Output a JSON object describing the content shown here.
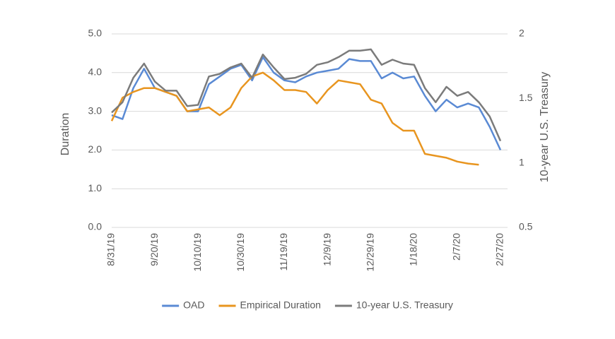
{
  "chart_data": {
    "type": "line",
    "ylabel": "Duration",
    "y2label": "10-year U.S. Treasury",
    "x": [
      "8/31/19",
      "9/5/19",
      "9/10/19",
      "9/15/19",
      "9/20/19",
      "9/25/19",
      "9/30/19",
      "10/5/19",
      "10/10/19",
      "10/15/19",
      "10/20/19",
      "10/25/19",
      "10/30/19",
      "11/4/19",
      "11/9/19",
      "11/14/19",
      "11/19/19",
      "11/24/19",
      "11/29/19",
      "12/4/19",
      "12/9/19",
      "12/14/19",
      "12/19/19",
      "12/24/19",
      "12/29/19",
      "1/3/20",
      "1/8/20",
      "1/13/20",
      "1/18/20",
      "1/23/20",
      "1/28/20",
      "2/2/20",
      "2/7/20",
      "2/12/20",
      "2/17/20",
      "2/22/20",
      "2/27/20"
    ],
    "xlim": [
      "8/31/19",
      "2/27/20"
    ],
    "xticks": [
      "8/31/19",
      "9/20/19",
      "10/10/19",
      "10/30/19",
      "11/19/19",
      "12/9/19",
      "12/29/19",
      "1/18/20",
      "2/7/20",
      "2/27/20"
    ],
    "ylim": [
      0,
      5
    ],
    "yticks": [
      {
        "value": 0,
        "label": "0.0"
      },
      {
        "value": 1,
        "label": "1.0"
      },
      {
        "value": 2,
        "label": "2.0"
      },
      {
        "value": 3,
        "label": "3.0"
      },
      {
        "value": 4,
        "label": "4.0"
      },
      {
        "value": 5,
        "label": "5.0"
      }
    ],
    "y2lim": [
      0.5,
      2
    ],
    "y2ticks": [
      0.5,
      1,
      1.5,
      2
    ],
    "grid": true,
    "legend": "bottom",
    "series": [
      {
        "name": "OAD",
        "color": "#5a8ad4",
        "values": [
          2.9,
          2.8,
          3.6,
          4.1,
          3.6,
          3.5,
          3.4,
          3.0,
          3.0,
          3.7,
          3.9,
          4.1,
          4.2,
          3.8,
          4.4,
          4.0,
          3.8,
          3.75,
          3.9,
          4.0,
          4.05,
          4.1,
          4.35,
          4.3,
          4.3,
          3.85,
          4.0,
          3.85,
          3.9,
          3.4,
          3.0,
          3.3,
          3.1,
          3.2,
          3.1,
          2.6,
          2.0
        ]
      },
      {
        "name": "Empirical Duration",
        "color": "#e8951f",
        "values": [
          2.75,
          3.35,
          3.5,
          3.6,
          3.6,
          3.5,
          3.4,
          3.0,
          3.05,
          3.1,
          2.9,
          3.1,
          3.6,
          3.9,
          4.0,
          3.8,
          3.55,
          3.55,
          3.5,
          3.2,
          3.55,
          3.8,
          3.75,
          3.7,
          3.3,
          3.2,
          2.7,
          2.5,
          2.5,
          1.9,
          1.85,
          1.8,
          1.7,
          1.65,
          1.62,
          null,
          null
        ]
      },
      {
        "name": "10-year U.S.  Treasury",
        "color": "#7b7b7b",
        "axis": "y2",
        "values": [
          1.39,
          1.47,
          1.66,
          1.77,
          1.63,
          1.56,
          1.56,
          1.44,
          1.45,
          1.67,
          1.69,
          1.74,
          1.77,
          1.66,
          1.84,
          1.74,
          1.65,
          1.66,
          1.69,
          1.76,
          1.78,
          1.82,
          1.87,
          1.87,
          1.88,
          1.76,
          1.8,
          1.77,
          1.76,
          1.58,
          1.47,
          1.59,
          1.52,
          1.55,
          1.47,
          1.36,
          1.17
        ]
      }
    ]
  }
}
